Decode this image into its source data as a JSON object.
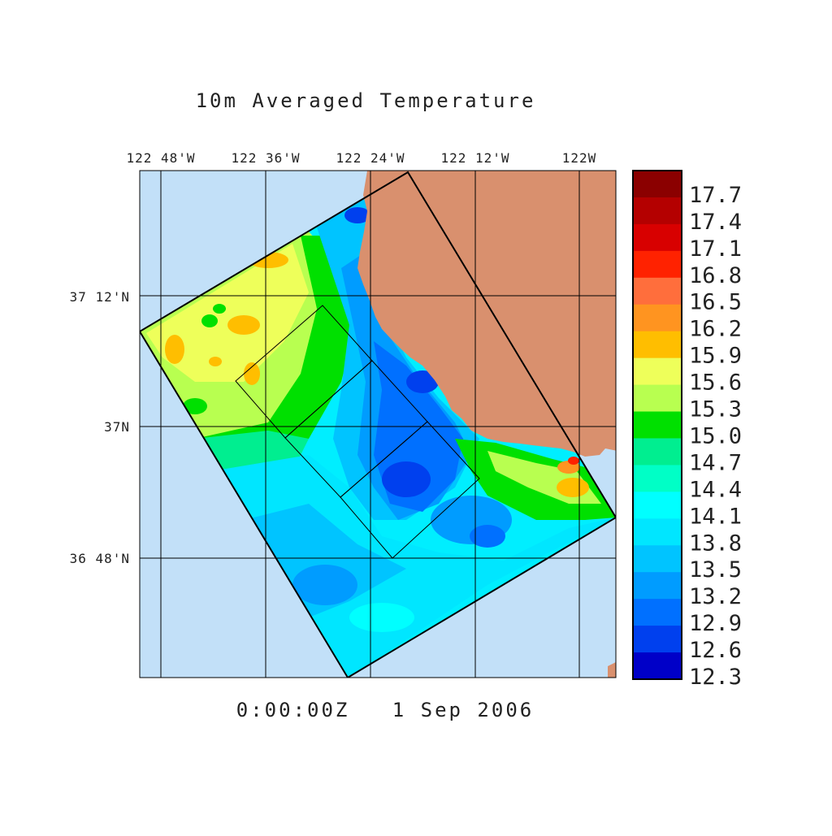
{
  "title": "10m Averaged Temperature",
  "timestamp": "0:00:00Z   1 Sep 2006",
  "lon_ticks": [
    "122 48'W",
    "122 36'W",
    "122 24'W",
    "122 12'W",
    "122W"
  ],
  "lat_ticks": [
    "37 12'N",
    "37N",
    "36 48'N"
  ],
  "colorbar": {
    "labels": [
      "17.7",
      "17.4",
      "17.1",
      "16.8",
      "16.5",
      "16.2",
      "15.9",
      "15.6",
      "15.3",
      "15.0",
      "14.7",
      "14.4",
      "14.1",
      "13.8",
      "13.5",
      "13.2",
      "12.9",
      "12.6",
      "12.3"
    ],
    "colors": [
      "#8b0000",
      "#b40000",
      "#d80000",
      "#ff2200",
      "#ff6e3c",
      "#ff9420",
      "#ffbe00",
      "#eeff5a",
      "#b8ff50",
      "#00e000",
      "#00ee90",
      "#00ffc6",
      "#00ffff",
      "#00e6ff",
      "#00c4ff",
      "#009cff",
      "#0070ff",
      "#0040ee",
      "#0000c8"
    ]
  },
  "colors": {
    "ocean": "#c2e0f8",
    "land": "#d9906e",
    "frame": "#000000"
  }
}
